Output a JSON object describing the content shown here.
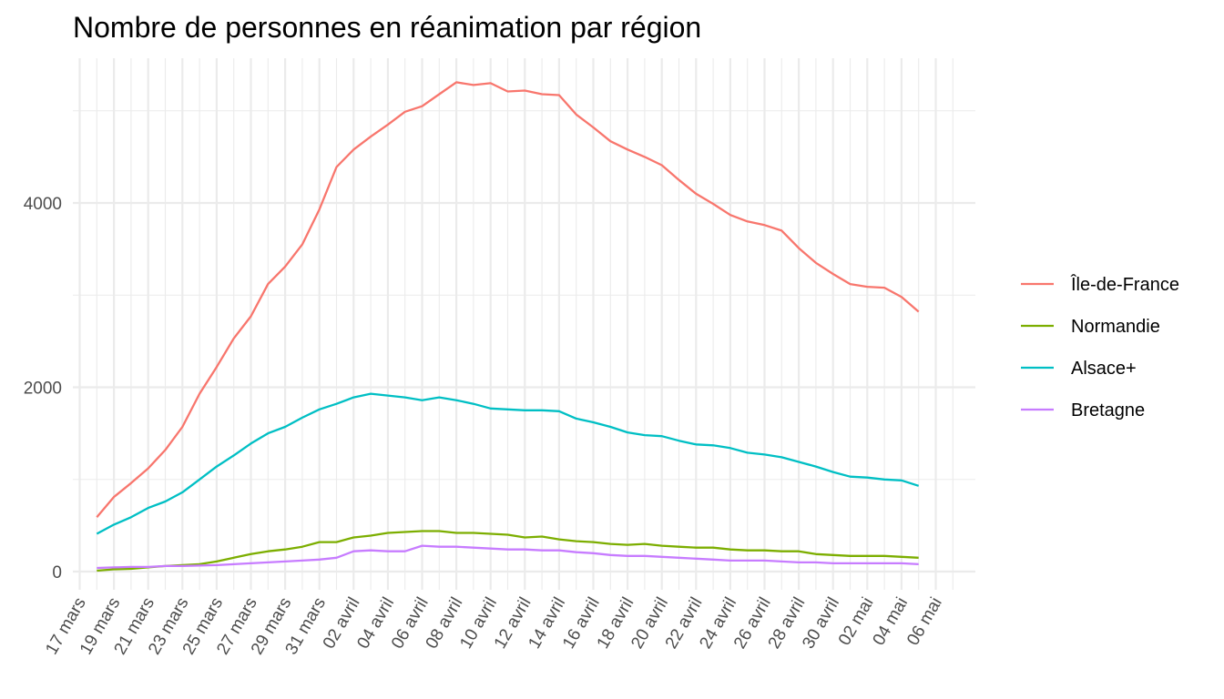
{
  "chart_data": {
    "type": "line",
    "title": "Nombre de personnes en réanimation par région",
    "xlabel": "",
    "ylabel": "",
    "y_ticks": [
      0,
      2000,
      4000
    ],
    "ylim": [
      -100,
      5550
    ],
    "x_tick_labels": [
      "17 mars",
      "19 mars",
      "21 mars",
      "23 mars",
      "25 mars",
      "27 mars",
      "29 mars",
      "31 mars",
      "02 avril",
      "04 avril",
      "06 avril",
      "08 avril",
      "10 avril",
      "12 avril",
      "14 avril",
      "16 avril",
      "18 avril",
      "20 avril",
      "22 avril",
      "24 avril",
      "26 avril",
      "28 avril",
      "30 avril",
      "02 mai",
      "04 mai",
      "06 mai"
    ],
    "x_start_date": "2020-03-17",
    "x": [
      "2020-03-18",
      "2020-03-19",
      "2020-03-20",
      "2020-03-21",
      "2020-03-22",
      "2020-03-23",
      "2020-03-24",
      "2020-03-25",
      "2020-03-26",
      "2020-03-27",
      "2020-03-28",
      "2020-03-29",
      "2020-03-30",
      "2020-03-31",
      "2020-04-01",
      "2020-04-02",
      "2020-04-03",
      "2020-04-04",
      "2020-04-05",
      "2020-04-06",
      "2020-04-07",
      "2020-04-08",
      "2020-04-09",
      "2020-04-10",
      "2020-04-11",
      "2020-04-12",
      "2020-04-13",
      "2020-04-14",
      "2020-04-15",
      "2020-04-16",
      "2020-04-17",
      "2020-04-18",
      "2020-04-19",
      "2020-04-20",
      "2020-04-21",
      "2020-04-22",
      "2020-04-23",
      "2020-04-24",
      "2020-04-25",
      "2020-04-26",
      "2020-04-27",
      "2020-04-28",
      "2020-04-29",
      "2020-04-30",
      "2020-05-01",
      "2020-05-02",
      "2020-05-03",
      "2020-05-04",
      "2020-05-05"
    ],
    "grid": true,
    "legend_position": "right",
    "series": [
      {
        "name": "Île-de-France",
        "color": "#F8766D",
        "values": [
          590,
          810,
          960,
          1120,
          1320,
          1570,
          1930,
          2220,
          2530,
          2770,
          3120,
          3310,
          3550,
          3930,
          4390,
          4580,
          4720,
          4850,
          4990,
          5050,
          5180,
          5310,
          5280,
          5300,
          5210,
          5220,
          5180,
          5170,
          4960,
          4820,
          4670,
          4580,
          4500,
          4410,
          4250,
          4100,
          3990,
          3870,
          3800,
          3760,
          3700,
          3510,
          3350,
          3230,
          3120,
          3090,
          3080,
          2980,
          2820
        ]
      },
      {
        "name": "Normandie",
        "color": "#7CAE00",
        "values": [
          10,
          25,
          30,
          45,
          60,
          70,
          80,
          110,
          150,
          190,
          220,
          240,
          270,
          320,
          320,
          370,
          390,
          420,
          430,
          440,
          440,
          420,
          420,
          410,
          400,
          370,
          380,
          350,
          330,
          320,
          300,
          290,
          300,
          280,
          270,
          260,
          260,
          240,
          230,
          230,
          220,
          220,
          190,
          180,
          170,
          170,
          170,
          160,
          150
        ]
      },
      {
        "name": "Alsace+",
        "color": "#00BFC4",
        "values": [
          410,
          510,
          590,
          690,
          760,
          860,
          1000,
          1140,
          1260,
          1390,
          1500,
          1570,
          1670,
          1760,
          1820,
          1890,
          1930,
          1910,
          1890,
          1860,
          1890,
          1860,
          1820,
          1770,
          1760,
          1750,
          1750,
          1740,
          1660,
          1620,
          1570,
          1510,
          1480,
          1470,
          1420,
          1380,
          1370,
          1340,
          1290,
          1270,
          1240,
          1190,
          1140,
          1080,
          1030,
          1020,
          1000,
          990,
          930
        ]
      },
      {
        "name": "Bretagne",
        "color": "#C77CFF",
        "values": [
          40,
          45,
          50,
          50,
          60,
          60,
          65,
          70,
          80,
          90,
          100,
          110,
          120,
          130,
          150,
          220,
          230,
          220,
          220,
          280,
          270,
          270,
          260,
          250,
          240,
          240,
          230,
          230,
          210,
          200,
          180,
          170,
          170,
          160,
          150,
          140,
          130,
          120,
          120,
          120,
          110,
          100,
          100,
          90,
          90,
          90,
          90,
          90,
          80
        ]
      }
    ]
  }
}
